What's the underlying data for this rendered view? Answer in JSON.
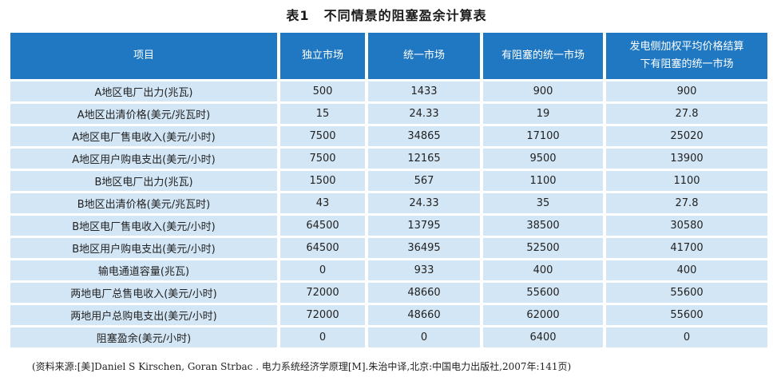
{
  "title": {
    "number": "表1",
    "text": "不同情景的阻塞盈余计算表"
  },
  "table": {
    "headers": [
      "项目",
      "独立市场",
      "统一市场",
      "有阻塞的统一市场",
      "发电侧加权平均价格结算下有阻塞的统一市场"
    ],
    "header_lines_col4": [
      "发电侧加权平均价格结算",
      "下有阻塞的统一市场"
    ],
    "rows": [
      [
        "A地区电厂出力(兆瓦)",
        "500",
        "1433",
        "900",
        "900"
      ],
      [
        "A地区出清价格(美元/兆瓦时)",
        "15",
        "24.33",
        "19",
        "27.8"
      ],
      [
        "A地区电厂售电收入(美元/小时)",
        "7500",
        "34865",
        "17100",
        "25020"
      ],
      [
        "A地区用户购电支出(美元/小时)",
        "7500",
        "12165",
        "9500",
        "13900"
      ],
      [
        "B地区电厂出力(兆瓦)",
        "1500",
        "567",
        "1100",
        "1100"
      ],
      [
        "B地区出清价格(美元/兆瓦时)",
        "43",
        "24.33",
        "35",
        "27.8"
      ],
      [
        "B地区电厂售电收入(美元/小时)",
        "64500",
        "13795",
        "38500",
        "30580"
      ],
      [
        "B地区用户购电支出(美元/小时)",
        "64500",
        "36495",
        "52500",
        "41700"
      ],
      [
        "输电通道容量(兆瓦)",
        "0",
        "933",
        "400",
        "400"
      ],
      [
        "两地电厂总售电收入(美元/小时)",
        "72000",
        "48660",
        "55600",
        "55600"
      ],
      [
        "两地用户总购电支出(美元/小时)",
        "72000",
        "48660",
        "62000",
        "55600"
      ],
      [
        "阻塞盈余(美元/小时)",
        "0",
        "0",
        "6400",
        "0"
      ]
    ]
  },
  "source_note": "(资料来源:[美]Daniel S Kirschen, Goran Strbac . 电力系统经济学原理[M].朱治中译,北京:中国电力出版社,2007年:141页)",
  "colors": {
    "header_bg": "#1f78c1",
    "cell_bg": "#d3e6f5"
  }
}
